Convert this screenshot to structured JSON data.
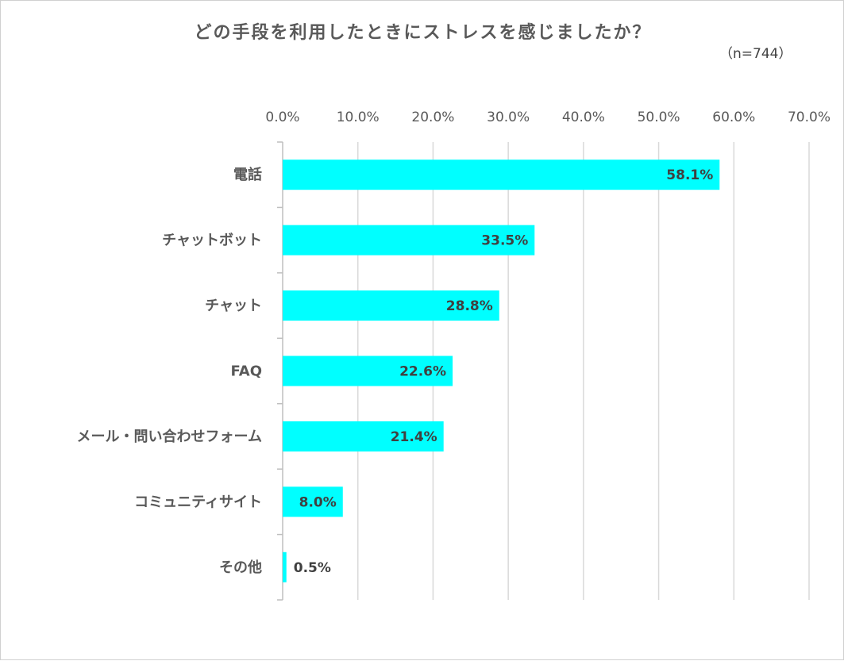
{
  "title": "どの手段を利用したときにストレスを感じましたか？",
  "sample_note": "（n=744）",
  "colors": {
    "bar": "#00FFFF",
    "grid": "#d9d9d9",
    "axis": "#bfbfbf"
  },
  "chart_data": {
    "type": "bar",
    "orientation": "horizontal",
    "title": "どの手段を利用したときにストレスを感じましたか？",
    "xlabel": "",
    "ylabel": "",
    "xlim": [
      0,
      70
    ],
    "x_ticks": [
      "0.0%",
      "10.0%",
      "20.0%",
      "30.0%",
      "40.0%",
      "50.0%",
      "60.0%",
      "70.0%"
    ],
    "x_axis_position": "top",
    "grid": true,
    "categories": [
      "電話",
      "チャットボット",
      "チャット",
      "FAQ",
      "メール・問い合わせフォーム",
      "コミュニティサイト",
      "その他"
    ],
    "values": [
      58.1,
      33.5,
      28.8,
      22.6,
      21.4,
      8.0,
      0.5
    ],
    "data_labels": [
      "58.1%",
      "33.5%",
      "28.8%",
      "22.6%",
      "21.4%",
      "8.0%",
      "0.5%"
    ]
  }
}
